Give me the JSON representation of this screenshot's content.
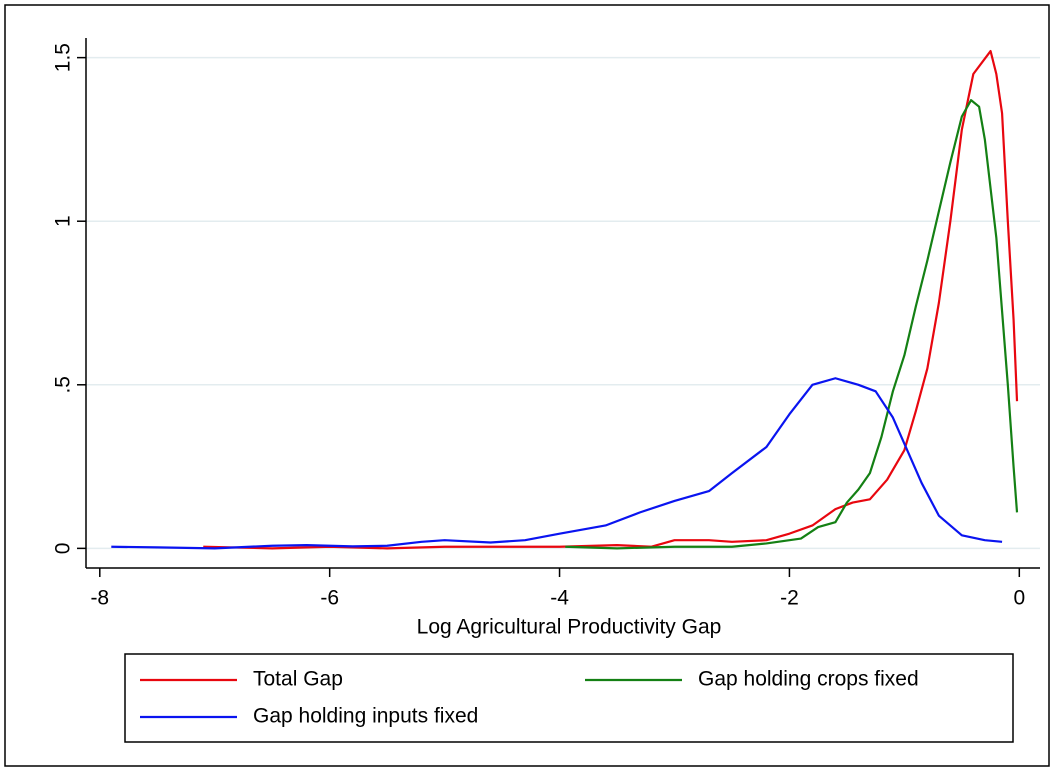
{
  "chart_data": {
    "type": "line",
    "x_label": "Log Agricultural Productivity Gap",
    "xlim": [
      -8.12,
      0.18
    ],
    "ylim": [
      -0.06,
      1.56
    ],
    "xticks": [
      -8,
      -6,
      -4,
      -2,
      0
    ],
    "yticks": [
      0,
      {
        "value": 0.5,
        "label": ".5"
      },
      1,
      1.5
    ],
    "grid": true,
    "series": [
      {
        "name": "Total Gap",
        "color": "#e8070f",
        "x": [
          -7.1,
          -6.5,
          -6,
          -5.5,
          -5,
          -4.5,
          -4,
          -3.5,
          -3.2,
          -3,
          -2.7,
          -2.5,
          -2.2,
          -2,
          -1.8,
          -1.6,
          -1.45,
          -1.3,
          -1.15,
          -1,
          -0.9,
          -0.8,
          -0.7,
          -0.6,
          -0.5,
          -0.4,
          -0.25,
          -0.2,
          -0.15,
          -0.1,
          -0.05,
          -0.02
        ],
        "values": [
          0.005,
          0,
          0.005,
          0,
          0.005,
          0.005,
          0.005,
          0.01,
          0.005,
          0.025,
          0.025,
          0.02,
          0.025,
          0.045,
          0.07,
          0.12,
          0.14,
          0.15,
          0.21,
          0.3,
          0.42,
          0.55,
          0.75,
          1.0,
          1.28,
          1.45,
          1.52,
          1.45,
          1.33,
          1.0,
          0.7,
          0.45
        ]
      },
      {
        "name": "Gap holding crops fixed",
        "color": "#148014",
        "x": [
          -3.95,
          -3.5,
          -3,
          -2.5,
          -2.2,
          -2,
          -1.9,
          -1.75,
          -1.6,
          -1.5,
          -1.4,
          -1.3,
          -1.2,
          -1.1,
          -1,
          -0.9,
          -0.8,
          -0.7,
          -0.6,
          -0.5,
          -0.42,
          -0.35,
          -0.3,
          -0.2,
          -0.1,
          -0.05,
          -0.02
        ],
        "values": [
          0.005,
          0,
          0.005,
          0.005,
          0.015,
          0.025,
          0.03,
          0.065,
          0.08,
          0.14,
          0.18,
          0.23,
          0.34,
          0.48,
          0.59,
          0.74,
          0.88,
          1.03,
          1.18,
          1.32,
          1.37,
          1.35,
          1.25,
          0.95,
          0.5,
          0.25,
          0.11
        ]
      },
      {
        "name": "Gap holding inputs fixed",
        "color": "#0a14f0",
        "x": [
          -7.9,
          -7.5,
          -7,
          -6.5,
          -6.2,
          -5.8,
          -5.5,
          -5.2,
          -5,
          -4.6,
          -4.3,
          -4,
          -3.6,
          -3.3,
          -3,
          -2.7,
          -2.5,
          -2.2,
          -2,
          -1.8,
          -1.6,
          -1.4,
          -1.25,
          -1.1,
          -1,
          -0.85,
          -0.7,
          -0.5,
          -0.3,
          -0.15
        ],
        "values": [
          0.005,
          0.003,
          0,
          0.008,
          0.01,
          0.006,
          0.008,
          0.02,
          0.025,
          0.018,
          0.025,
          0.045,
          0.07,
          0.11,
          0.145,
          0.175,
          0.23,
          0.31,
          0.41,
          0.5,
          0.52,
          0.5,
          0.48,
          0.4,
          0.32,
          0.2,
          0.1,
          0.04,
          0.025,
          0.02
        ]
      }
    ]
  }
}
